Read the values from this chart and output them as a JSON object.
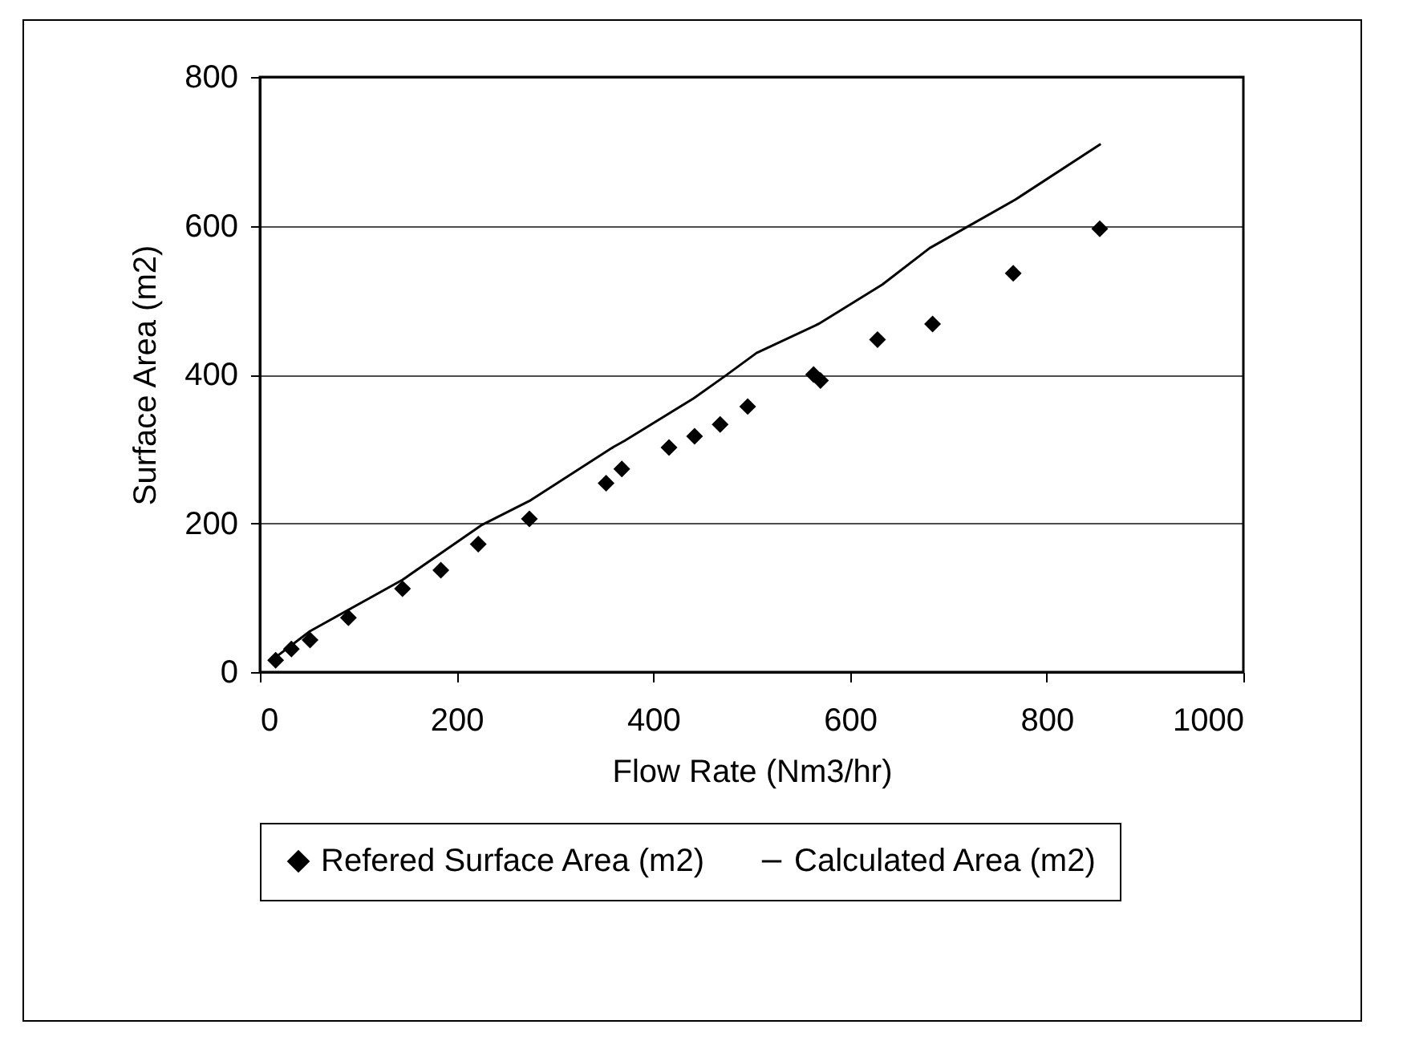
{
  "chart_data": {
    "type": "scatter",
    "xlabel": "Flow Rate (Nm3/hr)",
    "ylabel": "Surface Area (m2)",
    "xlim": [
      0,
      1000
    ],
    "xticks": [
      0,
      200,
      400,
      600,
      800,
      {
        "value": 1000,
        "label": "1000"
      }
    ],
    "ylim": [
      0,
      800
    ],
    "yticks": [
      0,
      200,
      400,
      600,
      800
    ],
    "grid": "y",
    "legend": "bottom",
    "series": [
      {
        "name": "Refered Surface Area (m2)",
        "marker": "diamond",
        "color": "#000000",
        "x": [
          16,
          32,
          51,
          90,
          145,
          184,
          222,
          274,
          352,
          368,
          416,
          442,
          468,
          496,
          563,
          570,
          628,
          684,
          766,
          854
        ],
        "values": [
          16,
          31,
          43,
          73,
          112,
          137,
          172,
          206,
          254,
          273,
          302,
          317,
          333,
          357,
          400,
          392,
          447,
          468,
          536,
          596
        ]
      },
      {
        "name": "Calculated Area (m2)",
        "type": "line",
        "marker": "none",
        "color": "#000000",
        "x": [
          11,
          51,
          145,
          226,
          274,
          360,
          371,
          441,
          473,
          505,
          568,
          633,
          681,
          768,
          855
        ],
        "values": [
          15,
          55,
          124,
          198,
          230,
          303,
          311,
          368,
          398,
          429,
          468,
          521,
          570,
          635,
          710
        ]
      }
    ]
  }
}
